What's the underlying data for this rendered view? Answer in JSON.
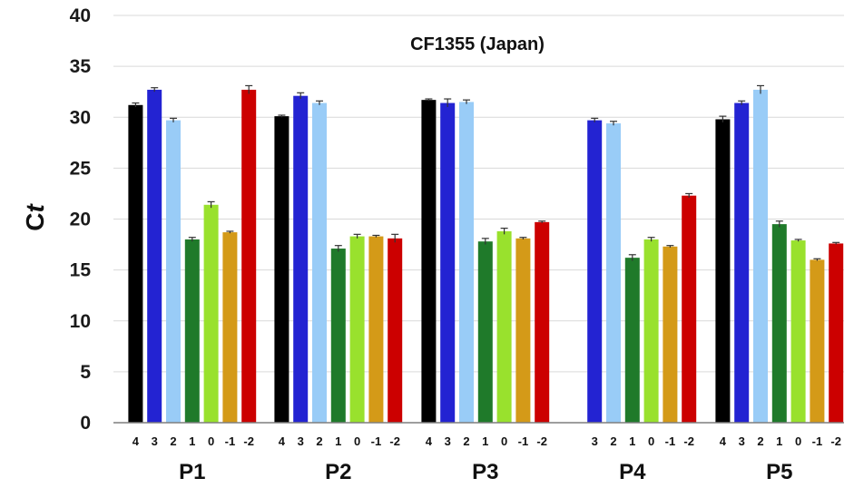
{
  "chart_data": {
    "type": "bar",
    "title": "CF1355 (Japan)",
    "ylabel_main": "C",
    "ylabel_italic": "t",
    "ylim": [
      0,
      40
    ],
    "yticks": [
      0,
      5,
      10,
      15,
      20,
      25,
      30,
      35,
      40
    ],
    "grid": true,
    "colors": {
      "4": "#000000",
      "3": "#2323d2",
      "2": "#99ccf7",
      "1": "#1f7a2a",
      "0": "#99e12d",
      "-1": "#d49a18",
      "-2": "#cc0000"
    },
    "groups": [
      {
        "name": "P1",
        "bars": [
          {
            "label": "4",
            "value": 31.2,
            "error": 0.2
          },
          {
            "label": "3",
            "value": 32.7,
            "error": 0.2
          },
          {
            "label": "2",
            "value": 29.7,
            "error": 0.2
          },
          {
            "label": "1",
            "value": 18.0,
            "error": 0.2
          },
          {
            "label": "0",
            "value": 21.4,
            "error": 0.3
          },
          {
            "label": "-1",
            "value": 18.7,
            "error": 0.1
          },
          {
            "label": "-2",
            "value": 32.7,
            "error": 0.4
          }
        ]
      },
      {
        "name": "P2",
        "bars": [
          {
            "label": "4",
            "value": 30.1,
            "error": 0.1
          },
          {
            "label": "3",
            "value": 32.1,
            "error": 0.3
          },
          {
            "label": "2",
            "value": 31.4,
            "error": 0.2
          },
          {
            "label": "1",
            "value": 17.1,
            "error": 0.3
          },
          {
            "label": "0",
            "value": 18.3,
            "error": 0.2
          },
          {
            "label": "-1",
            "value": 18.3,
            "error": 0.1
          },
          {
            "label": "-2",
            "value": 18.1,
            "error": 0.4
          }
        ]
      },
      {
        "name": "P3",
        "bars": [
          {
            "label": "4",
            "value": 31.7,
            "error": 0.1
          },
          {
            "label": "3",
            "value": 31.4,
            "error": 0.4
          },
          {
            "label": "2",
            "value": 31.5,
            "error": 0.2
          },
          {
            "label": "1",
            "value": 17.8,
            "error": 0.3
          },
          {
            "label": "0",
            "value": 18.8,
            "error": 0.3
          },
          {
            "label": "-1",
            "value": 18.1,
            "error": 0.1
          },
          {
            "label": "-2",
            "value": 19.7,
            "error": 0.1
          }
        ]
      },
      {
        "name": "P4",
        "bars": [
          {
            "label": "3",
            "value": 29.7,
            "error": 0.2
          },
          {
            "label": "2",
            "value": 29.4,
            "error": 0.2
          },
          {
            "label": "1",
            "value": 16.2,
            "error": 0.3
          },
          {
            "label": "0",
            "value": 18.0,
            "error": 0.2
          },
          {
            "label": "-1",
            "value": 17.3,
            "error": 0.1
          },
          {
            "label": "-2",
            "value": 22.3,
            "error": 0.2
          }
        ]
      },
      {
        "name": "P5",
        "bars": [
          {
            "label": "4",
            "value": 29.8,
            "error": 0.3
          },
          {
            "label": "3",
            "value": 31.4,
            "error": 0.2
          },
          {
            "label": "2",
            "value": 32.7,
            "error": 0.4
          },
          {
            "label": "1",
            "value": 19.5,
            "error": 0.3
          },
          {
            "label": "0",
            "value": 17.9,
            "error": 0.1
          },
          {
            "label": "-1",
            "value": 16.0,
            "error": 0.1
          },
          {
            "label": "-2",
            "value": 17.6,
            "error": 0.1
          }
        ]
      }
    ]
  }
}
